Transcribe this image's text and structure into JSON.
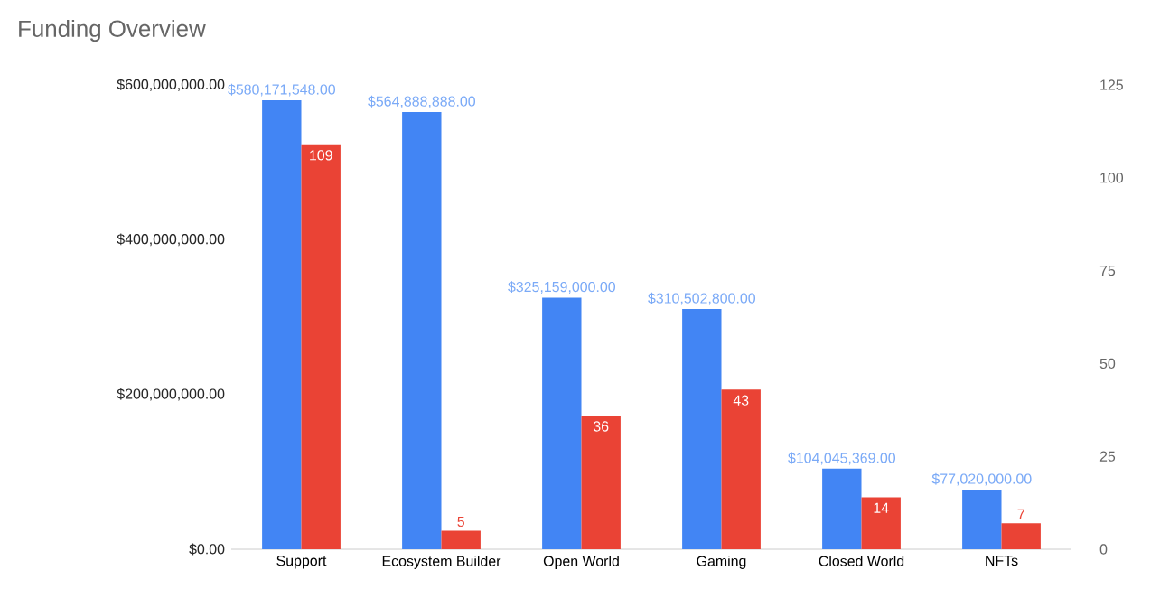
{
  "chart_data": {
    "type": "bar",
    "title": "Funding Overview",
    "categories": [
      "Support",
      "Ecosystem Builder",
      "Open World",
      "Gaming",
      "Closed World",
      "NFTs"
    ],
    "series": [
      {
        "color": "#4285f4",
        "values": [
          580171548,
          564888888,
          325159000,
          310502800,
          104045369,
          77020000
        ],
        "value_labels": [
          "$580,171,548.00",
          "$564,888,888.00",
          "$325,159,000.00",
          "$310,502,800.00",
          "$104,045,369.00",
          "$77,020,000.00"
        ]
      },
      {
        "color": "#ea4335",
        "axis": "y2",
        "values": [
          109,
          5,
          36,
          43,
          14,
          7
        ],
        "value_labels": [
          "109",
          "5",
          "36",
          "43",
          "14",
          "7"
        ]
      }
    ],
    "ylim": [
      0,
      600000000
    ],
    "yticks": [
      {
        "value": 0,
        "label": "$0.00"
      },
      {
        "value": 200000000,
        "label": "$200,000,000.00"
      },
      {
        "value": 400000000,
        "label": "$400,000,000.00"
      },
      {
        "value": 600000000,
        "label": "$600,000,000.00"
      }
    ],
    "y2lim": [
      0,
      125
    ],
    "y2ticks": [
      0,
      25,
      50,
      75,
      100,
      125
    ],
    "grid": false
  }
}
